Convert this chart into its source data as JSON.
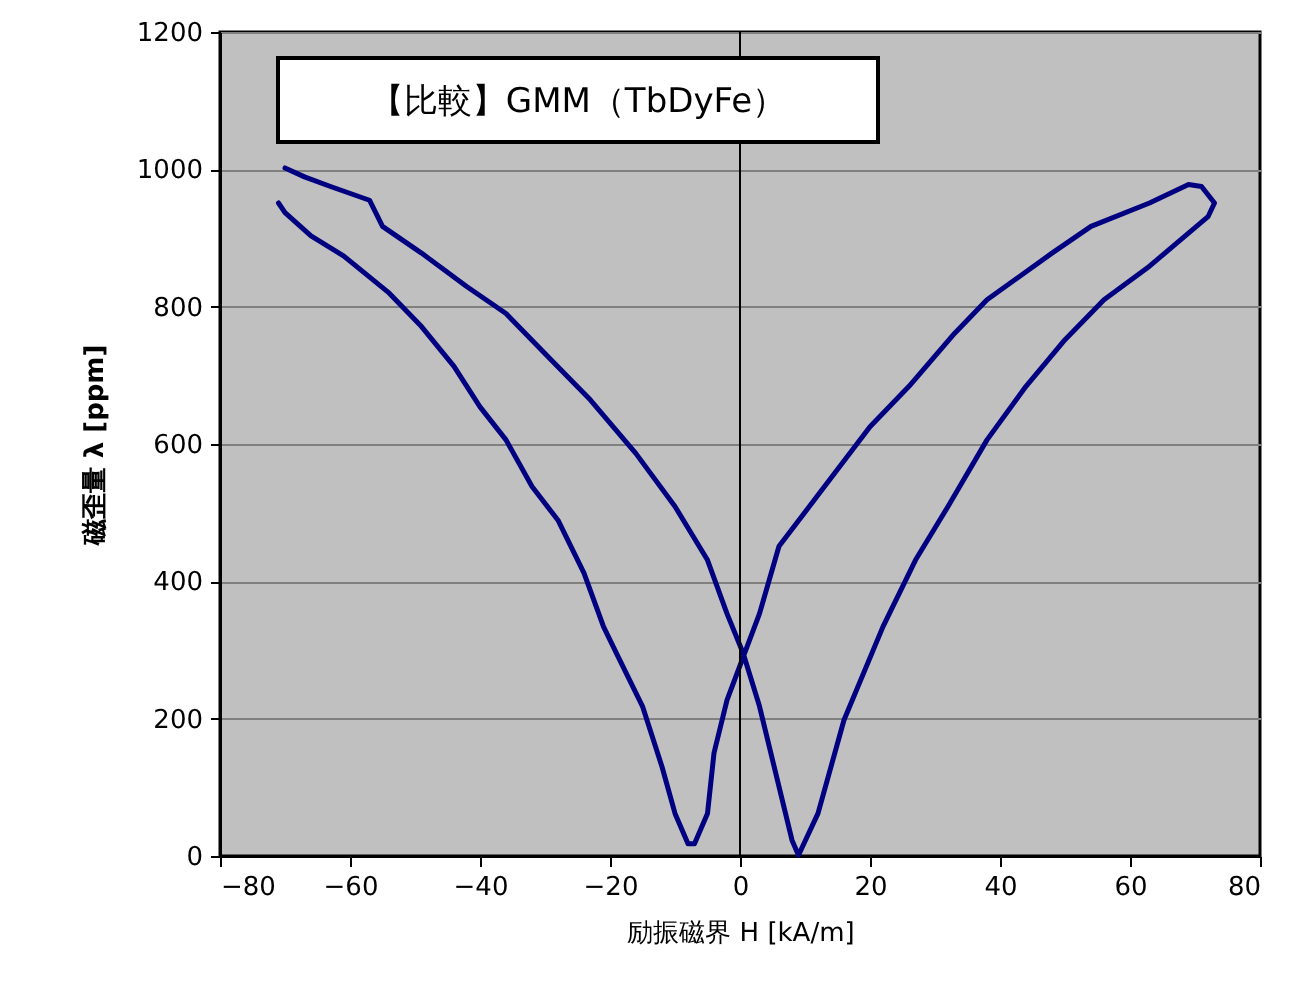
{
  "chart_data": {
    "type": "line",
    "xlabel": "励振磁界 H [kA/m]",
    "ylabel": "磁歪量 λ [ppm]",
    "annotations": [
      "【比較】GMM（TbDyFe）"
    ],
    "xlim": [
      -80,
      80
    ],
    "xticks": [
      -80,
      -60,
      -40,
      -20,
      0,
      20,
      40,
      60,
      80
    ],
    "ylim": [
      0,
      1200
    ],
    "yticks": [
      0,
      200,
      400,
      600,
      800,
      1000,
      1200
    ],
    "grid": "y",
    "line_style": "solid",
    "marker": "none",
    "ref_lines": [
      {
        "axis": "x",
        "value": 0,
        "color": "#000000"
      }
    ],
    "series": [
      {
        "color": "#000080",
        "x": [
          -70,
          -67,
          -63,
          -57,
          -55,
          -49,
          -42,
          -36,
          -29,
          -23,
          -16,
          -10,
          -5,
          -2,
          0.5,
          3,
          6,
          8,
          9,
          12,
          16,
          22,
          27,
          32,
          38,
          44,
          50,
          56,
          63,
          69,
          72,
          73,
          71,
          69,
          63,
          54,
          48,
          38,
          33,
          26,
          20,
          13,
          6,
          3,
          0.7,
          -2,
          -4,
          -5,
          -7,
          -8,
          -10,
          -12,
          -15,
          -19,
          -21,
          -24,
          -28,
          -32,
          -36,
          -40,
          -44,
          -49,
          -54,
          -61,
          -66,
          -70,
          -71
        ],
        "values": [
          1002,
          989,
          975,
          955,
          917,
          878,
          829,
          790,
          722,
          664,
          586,
          509,
          431,
          353,
          295,
          218,
          101,
          23,
          1,
          62,
          198,
          334,
          431,
          509,
          606,
          684,
          752,
          810,
          859,
          907,
          931,
          951,
          975,
          978,
          951,
          917,
          878,
          810,
          761,
          684,
          625,
          538,
          451,
          353,
          295,
          227,
          150,
          62,
          18,
          18,
          62,
          130,
          218,
          295,
          334,
          412,
          489,
          538,
          606,
          654,
          713,
          771,
          820,
          874,
          903,
          937,
          951
        ]
      }
    ]
  }
}
